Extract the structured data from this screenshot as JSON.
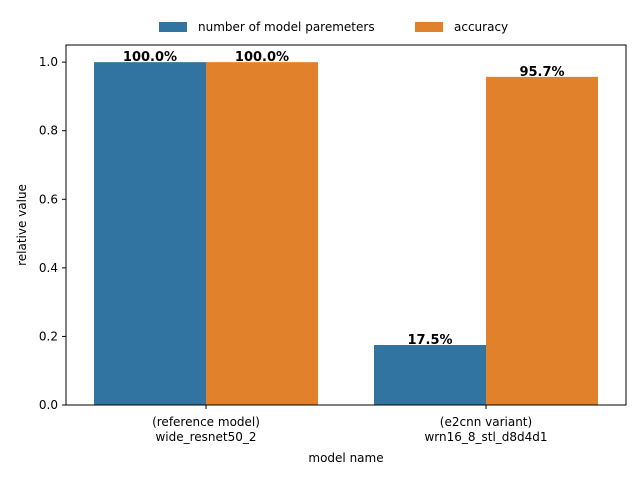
{
  "chart_data": {
    "type": "bar",
    "title": "",
    "xlabel": "model name",
    "ylabel": "relative value",
    "categories": [
      [
        "(reference model)",
        "wide_resnet50_2"
      ],
      [
        "(e2cnn variant)",
        "wrn16_8_stl_d8d4d1"
      ]
    ],
    "series": [
      {
        "name": "number of model paremeters",
        "color": "#3274a1",
        "values": [
          1.0,
          0.175
        ],
        "labels": [
          "100.0%",
          "17.5%"
        ]
      },
      {
        "name": "accuracy",
        "color": "#e1812c",
        "values": [
          1.0,
          0.957
        ],
        "labels": [
          "100.0%",
          "95.7%"
        ]
      }
    ],
    "ylim": [
      0,
      1.05
    ],
    "yticks": [
      "0.0",
      "0.2",
      "0.4",
      "0.6",
      "0.8",
      "1.0"
    ],
    "grid": false,
    "legend_position": "top-center"
  }
}
